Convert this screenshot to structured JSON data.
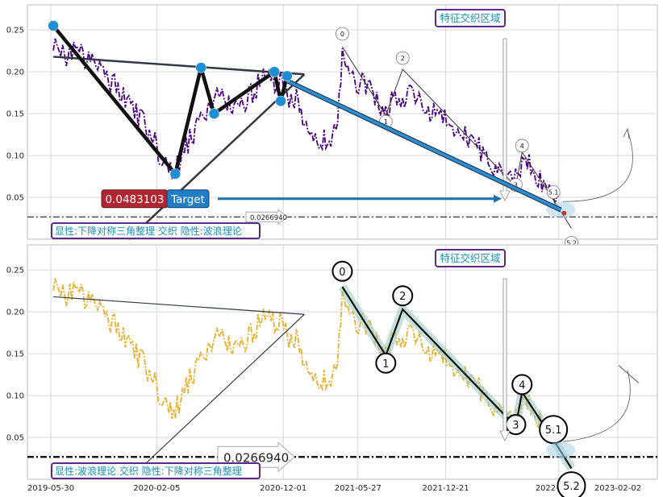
{
  "chart_data": [
    {
      "type": "line",
      "panel": "top",
      "x_ticks": [
        "2019-05-30",
        "2020-02-05",
        "2020-12-01",
        "2021-05-27",
        "2021-12-21",
        "2022-09-15",
        "2023-02-02"
      ],
      "y_ticks": [
        "0.05",
        "0.10",
        "0.15",
        "0.20",
        "0.25"
      ],
      "ylim": [
        0.0,
        0.28
      ],
      "line_color": "#4b0082",
      "price_series": [
        [
          "2019-06-05",
          0.235
        ],
        [
          "2019-07-01",
          0.22
        ],
        [
          "2019-08-01",
          0.225
        ],
        [
          "2019-09-01",
          0.21
        ],
        [
          "2019-10-01",
          0.2
        ],
        [
          "2019-11-01",
          0.18
        ],
        [
          "2019-12-01",
          0.16
        ],
        [
          "2020-01-01",
          0.14
        ],
        [
          "2020-02-01",
          0.115
        ],
        [
          "2020-03-01",
          0.085
        ],
        [
          "2020-03-20",
          0.08
        ],
        [
          "2020-04-15",
          0.11
        ],
        [
          "2020-05-15",
          0.14
        ],
        [
          "2020-06-10",
          0.155
        ],
        [
          "2020-07-01",
          0.175
        ],
        [
          "2020-07-25",
          0.16
        ],
        [
          "2020-08-15",
          0.15
        ],
        [
          "2020-09-15",
          0.175
        ],
        [
          "2020-10-15",
          0.19
        ],
        [
          "2020-11-15",
          0.19
        ],
        [
          "2020-12-15",
          0.17
        ],
        [
          "2021-01-05",
          0.165
        ],
        [
          "2021-01-20",
          0.13
        ],
        [
          "2021-02-15",
          0.115
        ],
        [
          "2021-03-20",
          0.12
        ],
        [
          "2021-04-05",
          0.13
        ],
        [
          "2021-04-20",
          0.215
        ],
        [
          "2021-05-15",
          0.195
        ],
        [
          "2021-06-15",
          0.18
        ],
        [
          "2021-07-15",
          0.165
        ],
        [
          "2021-08-01",
          0.155
        ],
        [
          "2021-09-01",
          0.17
        ],
        [
          "2021-10-01",
          0.17
        ],
        [
          "2021-11-01",
          0.16
        ],
        [
          "2021-12-01",
          0.15
        ],
        [
          "2022-01-01",
          0.135
        ],
        [
          "2022-02-01",
          0.125
        ],
        [
          "2022-03-01",
          0.11
        ],
        [
          "2022-04-01",
          0.1
        ],
        [
          "2022-05-01",
          0.08
        ],
        [
          "2022-06-01",
          0.07
        ],
        [
          "2022-06-20",
          0.09
        ],
        [
          "2022-07-15",
          0.085
        ],
        [
          "2022-08-15",
          0.065
        ],
        [
          "2022-09-15",
          0.05
        ]
      ],
      "pivot_points": [
        [
          "2019-06-05",
          0.255
        ],
        [
          "2020-03-20",
          0.078
        ],
        [
          "2020-05-20",
          0.205
        ],
        [
          "2020-06-20",
          0.15
        ],
        [
          "2020-11-10",
          0.2
        ],
        [
          "2020-11-25",
          0.165
        ],
        [
          "2020-12-10",
          0.195
        ]
      ],
      "pivot_color": "#1f8fd4",
      "triangle": {
        "upper": [
          [
            "2019-06-05",
            0.218
          ],
          [
            "2021-01-20",
            0.197
          ]
        ],
        "lower": [
          [
            "2019-12-01",
            0.0
          ],
          [
            "2021-01-20",
            0.197
          ]
        ]
      },
      "wave_labels": [
        {
          "label": "0",
          "x": "2021-04-20",
          "y": 0.23
        },
        {
          "label": "1",
          "x": "2021-08-01",
          "y": 0.148
        },
        {
          "label": "2",
          "x": "2021-09-10",
          "y": 0.203
        },
        {
          "label": "3",
          "x": "2022-06-05",
          "y": 0.063
        },
        {
          "label": "4",
          "x": "2022-06-20",
          "y": 0.104
        },
        {
          "label": "5.1",
          "x": "2022-09-10",
          "y": 0.041
        },
        {
          "label": "5.2",
          "x": "2022-10-15",
          "y": 0.013
        }
      ],
      "target_value": "0.0483103",
      "target_label": "Target",
      "hline_value": "0.0266940",
      "region_label": "特征交织区域",
      "caption": "显性:下降对称三角整理 交织 隐性:波浪理论"
    },
    {
      "type": "line",
      "panel": "bottom",
      "x_ticks": [
        "2019-05-30",
        "2020-02-05",
        "2020-12-01",
        "2021-05-27",
        "2021-12-21",
        "2022-09-15",
        "2023-02-02"
      ],
      "y_ticks": [
        "0.05",
        "0.10",
        "0.15",
        "0.20",
        "0.25"
      ],
      "ylim": [
        0.0,
        0.28
      ],
      "line_color": "#e8b030",
      "wave_labels": [
        {
          "label": "0",
          "x": "2021-04-20",
          "y": 0.23
        },
        {
          "label": "1",
          "x": "2021-08-01",
          "y": 0.148
        },
        {
          "label": "2",
          "x": "2021-09-10",
          "y": 0.203
        },
        {
          "label": "3",
          "x": "2022-06-05",
          "y": 0.063
        },
        {
          "label": "4",
          "x": "2022-06-20",
          "y": 0.104
        },
        {
          "label": "5.1",
          "x": "2022-09-10",
          "y": 0.041
        },
        {
          "label": "5.2",
          "x": "2022-10-15",
          "y": 0.013
        }
      ],
      "hline_value": "0.0266940",
      "region_label": "特征交织区域",
      "caption": "显性:波浪理论 交织 隐性:下降对称三角整理"
    }
  ]
}
